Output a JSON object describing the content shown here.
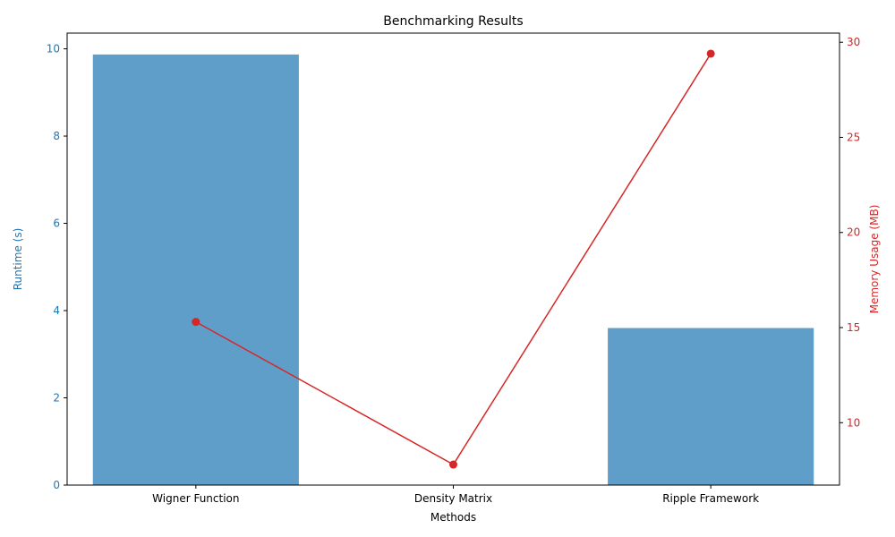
{
  "chart_data": {
    "type": "bar+line",
    "title": "Benchmarking Results",
    "xlabel": "Methods",
    "categories": [
      "Wigner Function",
      "Density Matrix",
      "Ripple Framework"
    ],
    "series": [
      {
        "name": "Runtime (s)",
        "type": "bar",
        "axis": "left",
        "values": [
          9.87,
          0.0,
          3.6
        ],
        "color": "#5f9ec9"
      },
      {
        "name": "Memory Usage (MB)",
        "type": "line",
        "axis": "right",
        "values": [
          15.3,
          7.8,
          29.4
        ],
        "color": "#d62728"
      }
    ],
    "y_left": {
      "label": "Runtime (s)",
      "range": [
        0,
        10.36
      ],
      "ticks": [
        0,
        2,
        4,
        6,
        8,
        10
      ],
      "color": "#1f77b4"
    },
    "y_right": {
      "label": "Memory Usage (MB)",
      "range": [
        6.72,
        30.48
      ],
      "ticks": [
        10,
        15,
        20,
        25,
        30
      ],
      "color": "#d62728"
    },
    "grid": false,
    "legend": "none"
  }
}
